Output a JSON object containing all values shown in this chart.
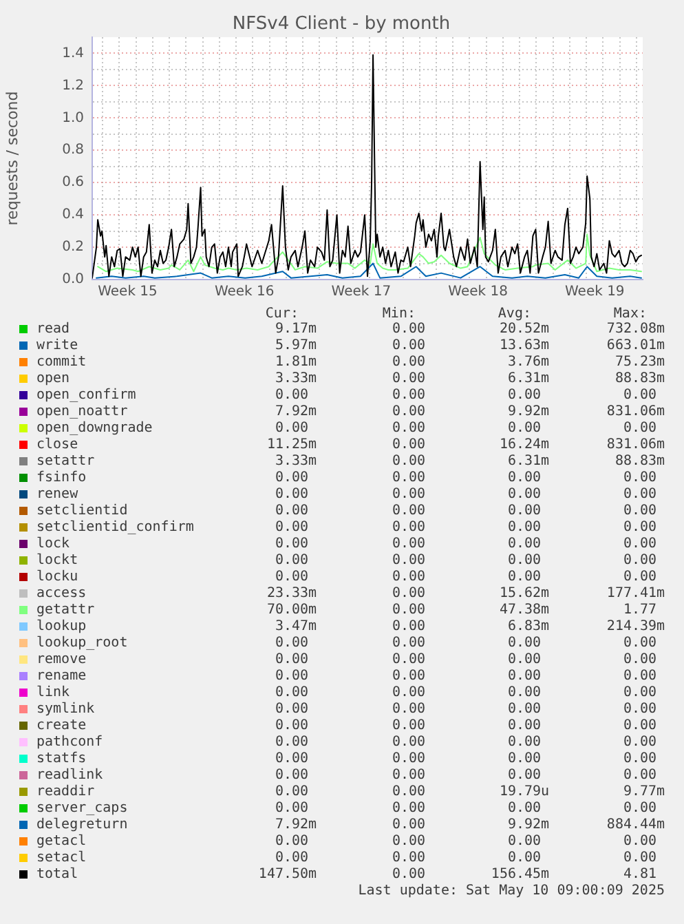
{
  "chart_data": {
    "type": "line",
    "title": "NFSv4 Client - by month",
    "ylabel": "requests / second",
    "xlim": [
      "2025-04-07T09:00",
      "2025-05-10T09:00"
    ],
    "xticks": [
      {
        "value": "2025-04-08",
        "label": null
      },
      {
        "value": "2025-04-09",
        "label": null
      },
      {
        "value": "2025-04-09T12:00",
        "label": "Week 15"
      },
      {
        "value": "2025-04-10",
        "label": null
      },
      {
        "value": "2025-04-11",
        "label": null
      },
      {
        "value": "2025-04-12",
        "label": null
      },
      {
        "value": "2025-04-13",
        "label": null
      },
      {
        "value": "2025-04-14",
        "label": null
      },
      {
        "value": "2025-04-15",
        "label": null
      },
      {
        "value": "2025-04-16",
        "label": null
      },
      {
        "value": "2025-04-16T12:00",
        "label": "Week 16"
      },
      {
        "value": "2025-04-17",
        "label": null
      },
      {
        "value": "2025-04-18",
        "label": null
      },
      {
        "value": "2025-04-19",
        "label": null
      },
      {
        "value": "2025-04-20",
        "label": null
      },
      {
        "value": "2025-04-21",
        "label": null
      },
      {
        "value": "2025-04-22",
        "label": null
      },
      {
        "value": "2025-04-23",
        "label": null
      },
      {
        "value": "2025-04-23T12:00",
        "label": "Week 17"
      },
      {
        "value": "2025-04-24",
        "label": null
      },
      {
        "value": "2025-04-25",
        "label": null
      },
      {
        "value": "2025-04-26",
        "label": null
      },
      {
        "value": "2025-04-27",
        "label": null
      },
      {
        "value": "2025-04-28",
        "label": null
      },
      {
        "value": "2025-04-29",
        "label": null
      },
      {
        "value": "2025-04-30",
        "label": null
      },
      {
        "value": "2025-04-30T12:00",
        "label": "Week 18"
      },
      {
        "value": "2025-05-01",
        "label": null
      },
      {
        "value": "2025-05-02",
        "label": null
      },
      {
        "value": "2025-05-03",
        "label": null
      },
      {
        "value": "2025-05-04",
        "label": null
      },
      {
        "value": "2025-05-05",
        "label": null
      },
      {
        "value": "2025-05-06",
        "label": null
      },
      {
        "value": "2025-05-07",
        "label": null
      },
      {
        "value": "2025-05-07T12:00",
        "label": "Week 19"
      },
      {
        "value": "2025-05-08",
        "label": null
      },
      {
        "value": "2025-05-09",
        "label": null
      },
      {
        "value": "2025-05-10",
        "label": null
      }
    ],
    "ylim": [
      0,
      1.5
    ],
    "yticks": [
      {
        "value": 0,
        "label": "0.0"
      },
      {
        "value": 0.1,
        "label": null
      },
      {
        "value": 0.2,
        "label": "0.2"
      },
      {
        "value": 0.3,
        "label": null
      },
      {
        "value": 0.4,
        "label": "0.4"
      },
      {
        "value": 0.5,
        "label": null
      },
      {
        "value": 0.6,
        "label": "0.6"
      },
      {
        "value": 0.7,
        "label": null
      },
      {
        "value": 0.8,
        "label": "0.8"
      },
      {
        "value": 0.9,
        "label": null
      },
      {
        "value": 1.0,
        "label": "1.0"
      },
      {
        "value": 1.1,
        "label": null
      },
      {
        "value": 1.2,
        "label": "1.2"
      },
      {
        "value": 1.3,
        "label": null
      },
      {
        "value": 1.4,
        "label": "1.4"
      }
    ],
    "grid": true,
    "legend": "bottom",
    "series": [
      {
        "name": "read",
        "color": "#00cc00"
      },
      {
        "name": "write",
        "color": "#0066b3",
        "x": [
          "2025-04-07T15:00",
          "2025-04-08T13:00",
          "2025-04-09T09:00",
          "2025-04-10T11:00",
          "2025-04-11T03:00",
          "2025-04-12T11:00",
          "2025-04-13T21:00",
          "2025-04-14T13:00",
          "2025-04-15T13:00",
          "2025-04-16T13:00",
          "2025-04-17T13:00",
          "2025-04-18T19:00",
          "2025-04-19T07:00",
          "2025-04-20T11:00",
          "2025-04-21T11:00",
          "2025-04-22T09:00",
          "2025-04-23T11:00",
          "2025-04-24T05:00",
          "2025-04-24T15:00",
          "2025-04-25T21:00",
          "2025-04-26T19:00",
          "2025-04-27T09:00",
          "2025-04-28T07:00",
          "2025-04-29T11:00",
          "2025-04-30T15:00",
          "2025-05-01T09:00",
          "2025-05-02T13:00",
          "2025-05-03T11:00",
          "2025-05-04T13:00",
          "2025-05-05T17:00",
          "2025-05-06T13:00",
          "2025-05-07T01:00",
          "2025-05-07T15:00",
          "2025-05-08T13:00",
          "2025-05-09T15:00",
          "2025-05-10T07:00"
        ],
        "values": [
          0.01,
          0.02,
          0.01,
          0.02,
          0.01,
          0.02,
          0.04,
          0.01,
          0.02,
          0.01,
          0.02,
          0.05,
          0.01,
          0.02,
          0.03,
          0.01,
          0.02,
          0.1,
          0.01,
          0.02,
          0.08,
          0.02,
          0.04,
          0.01,
          0.08,
          0.02,
          0.01,
          0.02,
          0.01,
          0.03,
          0.01,
          0.08,
          0.02,
          0.01,
          0.02,
          0.01
        ]
      },
      {
        "name": "commit",
        "color": "#ff8000"
      },
      {
        "name": "open",
        "color": "#ffcc00"
      },
      {
        "name": "open_confirm",
        "color": "#330099"
      },
      {
        "name": "open_noattr",
        "color": "#990099"
      },
      {
        "name": "open_downgrade",
        "color": "#ccff00"
      },
      {
        "name": "close",
        "color": "#ff0000"
      },
      {
        "name": "setattr",
        "color": "#808080"
      },
      {
        "name": "fsinfo",
        "color": "#008f00"
      },
      {
        "name": "renew",
        "color": "#00487d"
      },
      {
        "name": "setclientid",
        "color": "#b35a00"
      },
      {
        "name": "setclientid_confirm",
        "color": "#b38f00"
      },
      {
        "name": "lock",
        "color": "#6b006b"
      },
      {
        "name": "lockt",
        "color": "#8fb300"
      },
      {
        "name": "locku",
        "color": "#b30000"
      },
      {
        "name": "access",
        "color": "#bebebe"
      },
      {
        "name": "getattr",
        "color": "#80ff80",
        "x": [
          "2025-04-07T17:00",
          "2025-04-08T05:00",
          "2025-04-08T21:00",
          "2025-04-09T19:00",
          "2025-04-10T03:00",
          "2025-04-10T19:00",
          "2025-04-11T11:00",
          "2025-04-11T23:00",
          "2025-04-12T03:00",
          "2025-04-12T15:00",
          "2025-04-13T03:00",
          "2025-04-13T11:00",
          "2025-04-13T21:00",
          "2025-04-14T03:00",
          "2025-04-14T17:00",
          "2025-04-15T05:00",
          "2025-04-15T13:00",
          "2025-04-16T01:00",
          "2025-04-16T15:00",
          "2025-04-17T07:00",
          "2025-04-17T23:00",
          "2025-04-18T03:00",
          "2025-04-18T19:00",
          "2025-04-19T13:00",
          "2025-04-20T03:00",
          "2025-04-20T21:00",
          "2025-04-21T11:00",
          "2025-04-22T01:00",
          "2025-04-22T17:00",
          "2025-04-23T03:00",
          "2025-04-23T17:00",
          "2025-04-24T01:00",
          "2025-04-24T05:00",
          "2025-04-24T11:00",
          "2025-04-24T19:00",
          "2025-04-25T03:00",
          "2025-04-25T13:00",
          "2025-04-26T07:00",
          "2025-04-26T23:00",
          "2025-04-27T05:00",
          "2025-04-27T13:00",
          "2025-04-27T21:00",
          "2025-04-28T07:00",
          "2025-04-28T19:00",
          "2025-04-29T11:00",
          "2025-04-29T21:00",
          "2025-04-30T15:00",
          "2025-04-30T21:00",
          "2025-05-01T13:00",
          "2025-05-02T03:00",
          "2025-05-02T21:00",
          "2025-05-03T19:00",
          "2025-05-03T23:00",
          "2025-05-04T17:00",
          "2025-05-05T03:00",
          "2025-05-05T21:00",
          "2025-05-06T09:00",
          "2025-05-06T23:00",
          "2025-05-07T01:00",
          "2025-05-07T05:00",
          "2025-05-07T15:00",
          "2025-05-08T09:00",
          "2025-05-08T23:00",
          "2025-05-09T15:00",
          "2025-05-10T07:00"
        ],
        "values": [
          0.08,
          0.05,
          0.07,
          0.06,
          0.05,
          0.08,
          0.06,
          0.07,
          0.09,
          0.06,
          0.12,
          0.05,
          0.14,
          0.09,
          0.07,
          0.06,
          0.07,
          0.06,
          0.07,
          0.06,
          0.08,
          0.1,
          0.17,
          0.06,
          0.08,
          0.07,
          0.11,
          0.1,
          0.1,
          0.07,
          0.12,
          0.1,
          0.22,
          0.1,
          0.07,
          0.06,
          0.06,
          0.07,
          0.16,
          0.14,
          0.1,
          0.11,
          0.15,
          0.1,
          0.07,
          0.08,
          0.26,
          0.16,
          0.09,
          0.06,
          0.07,
          0.08,
          0.09,
          0.1,
          0.06,
          0.12,
          0.07,
          0.1,
          0.28,
          0.15,
          0.05,
          0.07,
          0.06,
          0.06,
          0.05
        ]
      },
      {
        "name": "lookup",
        "color": "#80c9ff"
      },
      {
        "name": "lookup_root",
        "color": "#ffc080"
      },
      {
        "name": "remove",
        "color": "#ffe680"
      },
      {
        "name": "rename",
        "color": "#aa80ff"
      },
      {
        "name": "link",
        "color": "#ee00cc"
      },
      {
        "name": "symlink",
        "color": "#ff8080"
      },
      {
        "name": "create",
        "color": "#666600"
      },
      {
        "name": "pathconf",
        "color": "#ffbfff"
      },
      {
        "name": "statfs",
        "color": "#00ffcc"
      },
      {
        "name": "readlink",
        "color": "#cc6699"
      },
      {
        "name": "readdir",
        "color": "#999900"
      },
      {
        "name": "server_caps",
        "color": "#00cc00"
      },
      {
        "name": "delegreturn",
        "color": "#0066b3"
      },
      {
        "name": "getacl",
        "color": "#ff8000"
      },
      {
        "name": "setacl",
        "color": "#ffcc00"
      },
      {
        "name": "total",
        "color": "#000000",
        "x": [
          "2025-04-07T09:00",
          "2025-04-07T15:00",
          "2025-04-07T17:00",
          "2025-04-07T21:00",
          "2025-04-07T23:00",
          "2025-04-08T03:00",
          "2025-04-08T05:00",
          "2025-04-08T09:00",
          "2025-04-08T13:00",
          "2025-04-08T17:00",
          "2025-04-08T21:00",
          "2025-04-09T01:00",
          "2025-04-09T05:00",
          "2025-04-09T09:00",
          "2025-04-09T15:00",
          "2025-04-09T19:00",
          "2025-04-09T23:00",
          "2025-04-10T03:00",
          "2025-04-10T07:00",
          "2025-04-10T11:00",
          "2025-04-10T15:00",
          "2025-04-10T19:00",
          "2025-04-10T23:00",
          "2025-04-11T03:00",
          "2025-04-11T07:00",
          "2025-04-11T11:00",
          "2025-04-11T15:00",
          "2025-04-11T19:00",
          "2025-04-11T23:00",
          "2025-04-12T03:00",
          "2025-04-12T07:00",
          "2025-04-12T11:00",
          "2025-04-12T15:00",
          "2025-04-12T21:00",
          "2025-04-13T01:00",
          "2025-04-13T03:00",
          "2025-04-13T07:00",
          "2025-04-13T11:00",
          "2025-04-13T15:00",
          "2025-04-13T17:00",
          "2025-04-13T21:00",
          "2025-04-13T23:00",
          "2025-04-14T03:00",
          "2025-04-14T05:00",
          "2025-04-14T09:00",
          "2025-04-14T13:00",
          "2025-04-14T17:00",
          "2025-04-14T21:00",
          "2025-04-15T01:00",
          "2025-04-15T05:00",
          "2025-04-15T09:00",
          "2025-04-15T13:00",
          "2025-04-15T17:00",
          "2025-04-15T19:00",
          "2025-04-16T01:00",
          "2025-04-16T03:00",
          "2025-04-16T09:00",
          "2025-04-16T13:00",
          "2025-04-16T15:00",
          "2025-04-16T23:00",
          "2025-04-17T07:00",
          "2025-04-17T13:00",
          "2025-04-17T23:00",
          "2025-04-18T03:00",
          "2025-04-18T09:00",
          "2025-04-18T13:00",
          "2025-04-18T19:00",
          "2025-04-18T23:00",
          "2025-04-19T03:00",
          "2025-04-19T07:00",
          "2025-04-19T13:00",
          "2025-04-19T17:00",
          "2025-04-19T23:00",
          "2025-04-20T03:00",
          "2025-04-20T07:00",
          "2025-04-20T11:00",
          "2025-04-20T17:00",
          "2025-04-20T21:00",
          "2025-04-21T03:00",
          "2025-04-21T07:00",
          "2025-04-21T11:00",
          "2025-04-21T15:00",
          "2025-04-21T19:00",
          "2025-04-22T01:00",
          "2025-04-22T05:00",
          "2025-04-22T09:00",
          "2025-04-22T13:00",
          "2025-04-22T17:00",
          "2025-04-22T21:00",
          "2025-04-23T03:00",
          "2025-04-23T07:00",
          "2025-04-23T11:00",
          "2025-04-23T17:00",
          "2025-04-23T21:00",
          "2025-04-24T01:00",
          "2025-04-24T03:00",
          "2025-04-24T05:00",
          "2025-04-24T09:00",
          "2025-04-24T11:00",
          "2025-04-24T15:00",
          "2025-04-24T19:00",
          "2025-04-24T23:00",
          "2025-04-25T03:00",
          "2025-04-25T07:00",
          "2025-04-25T13:00",
          "2025-04-25T17:00",
          "2025-04-25T21:00",
          "2025-04-26T01:00",
          "2025-04-26T07:00",
          "2025-04-26T11:00",
          "2025-04-26T17:00",
          "2025-04-26T19:00",
          "2025-04-26T23:00",
          "2025-04-27T03:00",
          "2025-04-27T05:00",
          "2025-04-27T09:00",
          "2025-04-27T13:00",
          "2025-04-27T17:00",
          "2025-04-27T21:00",
          "2025-04-28T01:00",
          "2025-04-28T03:00",
          "2025-04-28T07:00",
          "2025-04-28T11:00",
          "2025-04-28T13:00",
          "2025-04-28T19:00",
          "2025-04-29T01:00",
          "2025-04-29T05:00",
          "2025-04-29T11:00",
          "2025-04-29T17:00",
          "2025-04-29T21:00",
          "2025-04-30T01:00",
          "2025-04-30T07:00",
          "2025-04-30T11:00",
          "2025-04-30T15:00",
          "2025-04-30T19:00",
          "2025-04-30T21:00",
          "2025-04-30T23:00",
          "2025-05-01T03:00",
          "2025-05-01T09:00",
          "2025-05-01T13:00",
          "2025-05-01T17:00",
          "2025-05-01T21:00",
          "2025-05-02T03:00",
          "2025-05-02T07:00",
          "2025-05-02T13:00",
          "2025-05-02T17:00",
          "2025-05-02T21:00",
          "2025-05-03T01:00",
          "2025-05-03T07:00",
          "2025-05-03T11:00",
          "2025-05-03T15:00",
          "2025-05-03T19:00",
          "2025-05-03T23:00",
          "2025-05-04T03:00",
          "2025-05-04T09:00",
          "2025-05-04T13:00",
          "2025-05-04T17:00",
          "2025-05-04T21:00",
          "2025-05-05T03:00",
          "2025-05-05T07:00",
          "2025-05-05T13:00",
          "2025-05-05T17:00",
          "2025-05-05T21:00",
          "2025-05-06T01:00",
          "2025-05-06T05:00",
          "2025-05-06T09:00",
          "2025-05-06T13:00",
          "2025-05-06T19:00",
          "2025-05-06T23:00",
          "2025-05-07T01:00",
          "2025-05-07T05:00",
          "2025-05-07T07:00",
          "2025-05-07T11:00",
          "2025-05-07T15:00",
          "2025-05-07T19:00",
          "2025-05-08T01:00",
          "2025-05-08T05:00",
          "2025-05-08T09:00",
          "2025-05-08T13:00",
          "2025-05-08T17:00",
          "2025-05-08T23:00",
          "2025-05-09T03:00",
          "2025-05-09T07:00",
          "2025-05-09T11:00",
          "2025-05-09T15:00",
          "2025-05-09T19:00",
          "2025-05-09T23:00",
          "2025-05-10T03:00",
          "2025-05-10T07:00"
        ],
        "values": [
          0.01,
          0.2,
          0.37,
          0.27,
          0.3,
          0.14,
          0.21,
          0.02,
          0.14,
          0.08,
          0.18,
          0.19,
          0.02,
          0.14,
          0.12,
          0.2,
          0.14,
          0.2,
          0.02,
          0.14,
          0.17,
          0.34,
          0.04,
          0.12,
          0.08,
          0.18,
          0.1,
          0.12,
          0.2,
          0.31,
          0.08,
          0.14,
          0.22,
          0.25,
          0.31,
          0.47,
          0.1,
          0.14,
          0.2,
          0.31,
          0.57,
          0.27,
          0.31,
          0.14,
          0.08,
          0.2,
          0.22,
          0.04,
          0.14,
          0.17,
          0.08,
          0.2,
          0.08,
          0.17,
          0.22,
          0.02,
          0.08,
          0.17,
          0.22,
          0.08,
          0.18,
          0.1,
          0.24,
          0.34,
          0.04,
          0.14,
          0.58,
          0.2,
          0.06,
          0.14,
          0.18,
          0.08,
          0.2,
          0.3,
          0.04,
          0.12,
          0.08,
          0.2,
          0.17,
          0.12,
          0.43,
          0.08,
          0.12,
          0.4,
          0.04,
          0.18,
          0.14,
          0.33,
          0.1,
          0.18,
          0.14,
          0.17,
          0.4,
          0.02,
          0.24,
          0.6,
          1.39,
          0.2,
          0.28,
          0.14,
          0.2,
          0.1,
          0.18,
          0.08,
          0.17,
          0.04,
          0.12,
          0.11,
          0.2,
          0.08,
          0.27,
          0.35,
          0.41,
          0.3,
          0.37,
          0.2,
          0.28,
          0.24,
          0.31,
          0.14,
          0.27,
          0.41,
          0.2,
          0.18,
          0.31,
          0.14,
          0.08,
          0.2,
          0.12,
          0.25,
          0.1,
          0.2,
          0.08,
          0.73,
          0.31,
          0.51,
          0.14,
          0.11,
          0.18,
          0.31,
          0.04,
          0.14,
          0.18,
          0.08,
          0.2,
          0.16,
          0.22,
          0.04,
          0.14,
          0.18,
          0.04,
          0.27,
          0.31,
          0.04,
          0.14,
          0.2,
          0.36,
          0.1,
          0.18,
          0.14,
          0.12,
          0.34,
          0.44,
          0.1,
          0.14,
          0.2,
          0.16,
          0.2,
          0.35,
          0.64,
          0.5,
          0.14,
          0.08,
          0.16,
          0.06,
          0.1,
          0.04,
          0.24,
          0.16,
          0.14,
          0.18,
          0.1,
          0.08,
          0.1,
          0.18,
          0.16,
          0.11,
          0.14,
          0.15
        ]
      }
    ],
    "annotations": [
      "Cur:",
      "Min:",
      "Avg:",
      "Max:",
      "9.17m",
      "0.00",
      "20.52m",
      "732.08m",
      "5.97m",
      "0.00",
      "13.63m",
      "663.01m",
      "1.81m",
      "0.00",
      "3.76m",
      "75.23m",
      "3.33m",
      "0.00",
      "6.31m",
      "88.83m",
      "0.00",
      "0.00",
      "0.00",
      "0.00",
      "7.92m",
      "0.00",
      "9.92m",
      "831.06m",
      "0.00",
      "0.00",
      "0.00",
      "0.00",
      "11.25m",
      "0.00",
      "16.24m",
      "831.06m",
      "3.33m",
      "0.00",
      "6.31m",
      "88.83m",
      "0.00",
      "0.00",
      "0.00",
      "0.00",
      "0.00",
      "0.00",
      "0.00",
      "0.00",
      "0.00",
      "0.00",
      "0.00",
      "0.00",
      "0.00",
      "0.00",
      "0.00",
      "0.00",
      "0.00",
      "0.00",
      "0.00",
      "0.00",
      "0.00",
      "0.00",
      "0.00",
      "0.00",
      "0.00",
      "0.00",
      "0.00",
      "0.00",
      "23.33m",
      "0.00",
      "15.62m",
      "177.41m",
      "70.00m",
      "0.00",
      "47.38m",
      "1.77",
      "3.47m",
      "0.00",
      "6.83m",
      "214.39m",
      "0.00",
      "0.00",
      "0.00",
      "0.00",
      "0.00",
      "0.00",
      "0.00",
      "0.00",
      "0.00",
      "0.00",
      "0.00",
      "0.00",
      "0.00",
      "0.00",
      "0.00",
      "0.00",
      "0.00",
      "0.00",
      "0.00",
      "0.00",
      "0.00",
      "0.00",
      "0.00",
      "0.00",
      "0.00",
      "0.00",
      "0.00",
      "0.00",
      "0.00",
      "0.00",
      "0.00",
      "0.00",
      "0.00",
      "0.00",
      "0.00",
      "0.00",
      "0.00",
      "0.00",
      "19.79u",
      "9.77m",
      "0.00",
      "0.00",
      "0.00",
      "0.00",
      "7.92m",
      "0.00",
      "9.92m",
      "884.44m",
      "0.00",
      "0.00",
      "0.00",
      "0.00",
      "0.00",
      "0.00",
      "0.00",
      "0.00",
      "147.50m",
      "0.00",
      "156.45m",
      "4.81",
      "Last update: Sat May 10 09:00:09 2025"
    ]
  }
}
